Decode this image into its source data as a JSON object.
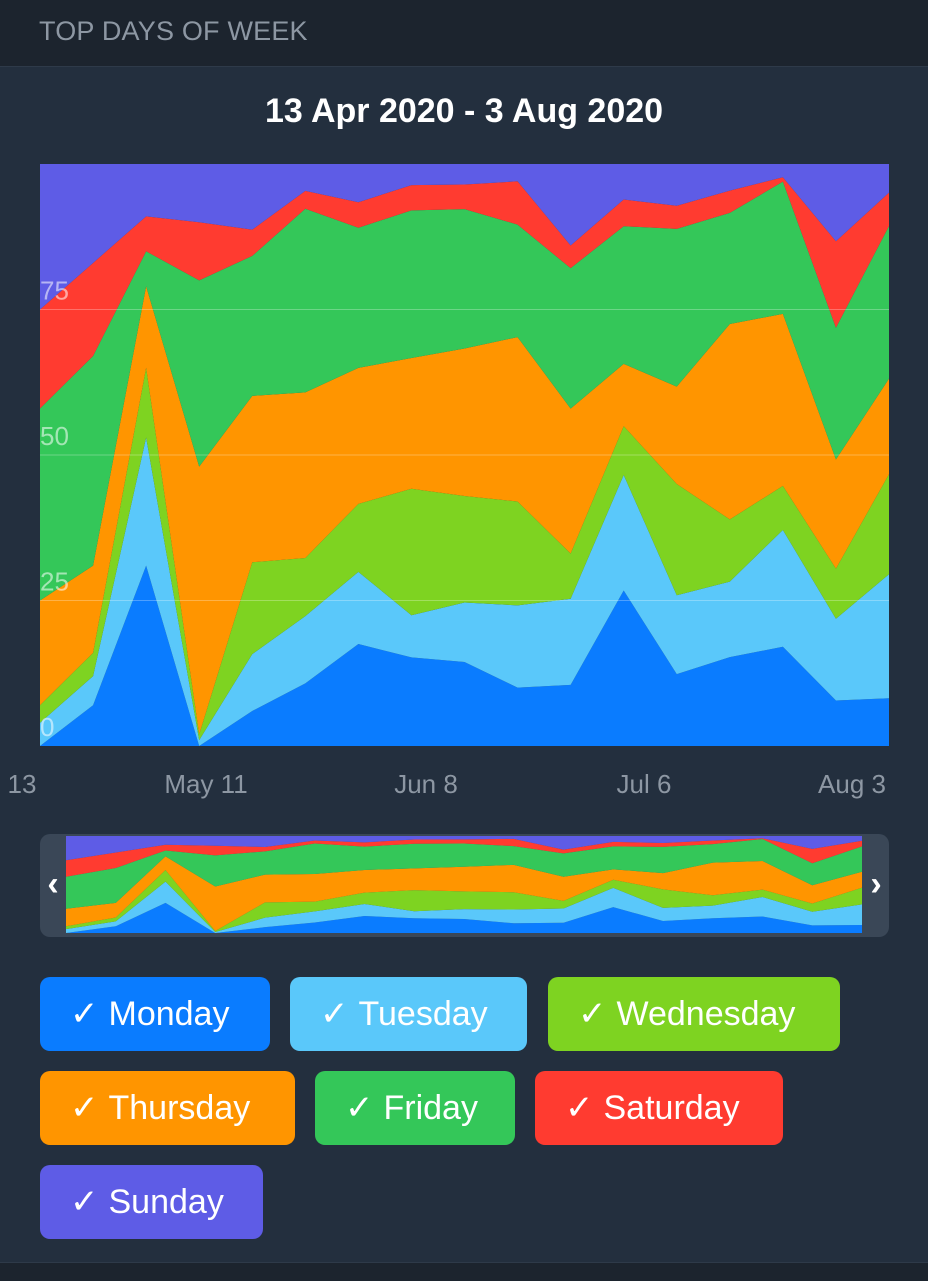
{
  "header": {
    "title": "TOP DAYS OF WEEK"
  },
  "range_title": "13 Apr 2020 - 3 Aug 2020",
  "colors": {
    "Monday": "#0a7cff",
    "Tuesday": "#5ac8fa",
    "Wednesday": "#7ed321",
    "Thursday": "#ff9500",
    "Friday": "#34c759",
    "Saturday": "#ff3b30",
    "Sunday": "#5e5ce6",
    "background": "#232f3e",
    "header": "#1c242e"
  },
  "legend": [
    {
      "label": "Monday",
      "check": "✓",
      "color": "#0a7cff",
      "checked": true
    },
    {
      "label": "Tuesday",
      "check": "✓",
      "color": "#5ac8fa",
      "checked": true
    },
    {
      "label": "Wednesday",
      "check": "✓",
      "color": "#7ed321",
      "checked": true
    },
    {
      "label": "Thursday",
      "check": "✓",
      "color": "#ff9500",
      "checked": true
    },
    {
      "label": "Friday",
      "check": "✓",
      "color": "#34c759",
      "checked": true
    },
    {
      "label": "Saturday",
      "check": "✓",
      "color": "#ff3b30",
      "checked": true
    },
    {
      "label": "Sunday",
      "check": "✓",
      "color": "#5e5ce6",
      "checked": true
    }
  ],
  "overview": {
    "left_arrow": "‹",
    "right_arrow": "›"
  },
  "chart_data": {
    "type": "area",
    "stacked": "percent",
    "x": [
      "13 Apr 2020",
      "20 Apr 2020",
      "27 Apr 2020",
      "4 May 2020",
      "11 May 2020",
      "18 May 2020",
      "25 May 2020",
      "1 Jun 2020",
      "8 Jun 2020",
      "15 Jun 2020",
      "22 Jun 2020",
      "29 Jun 2020",
      "6 Jul 2020",
      "13 Jul 2020",
      "20 Jul 2020",
      "27 Jul 2020",
      "3 Aug 2020"
    ],
    "x_tick_labels": [
      "13",
      "May 11",
      "Jun 8",
      "Jul 6",
      "Aug 3"
    ],
    "y_ticks": [
      "0",
      "25",
      "50",
      "75"
    ],
    "ylim": [
      0,
      100
    ],
    "grid": true,
    "series": [
      {
        "name": "Monday",
        "values": [
          0,
          7,
          31,
          0,
          8,
          14,
          24,
          21,
          20.5,
          13.5,
          13.5,
          35,
          15.5,
          20,
          22.5,
          10,
          10
        ]
      },
      {
        "name": "Tuesday",
        "values": [
          4,
          5,
          22,
          1,
          13,
          15,
          17,
          10,
          14.5,
          19,
          19,
          26,
          17,
          17,
          26.5,
          18,
          26
        ]
      },
      {
        "name": "Wednesday",
        "values": [
          3,
          4,
          12,
          1,
          21,
          13,
          16,
          30,
          26,
          24,
          10,
          11,
          24,
          14,
          10,
          11,
          21
        ]
      },
      {
        "name": "Thursday",
        "values": [
          18,
          15,
          14,
          46,
          38,
          37,
          32,
          31,
          36,
          38,
          32,
          14,
          21,
          44,
          39,
          24,
          20
        ]
      },
      {
        "name": "Friday",
        "values": [
          33,
          36,
          6,
          32,
          32,
          41,
          33,
          35,
          34,
          26,
          31,
          31,
          34,
          25,
          30,
          29,
          32
        ]
      },
      {
        "name": "Saturday",
        "values": [
          17,
          16,
          6,
          10,
          6,
          4,
          6,
          6,
          6,
          10,
          5,
          6,
          5,
          5,
          1,
          19,
          7
        ]
      },
      {
        "name": "Sunday",
        "values": [
          25,
          17,
          9,
          10,
          15,
          6,
          9,
          5,
          5,
          4,
          18,
          8,
          9,
          6,
          3,
          17,
          6
        ]
      }
    ]
  }
}
